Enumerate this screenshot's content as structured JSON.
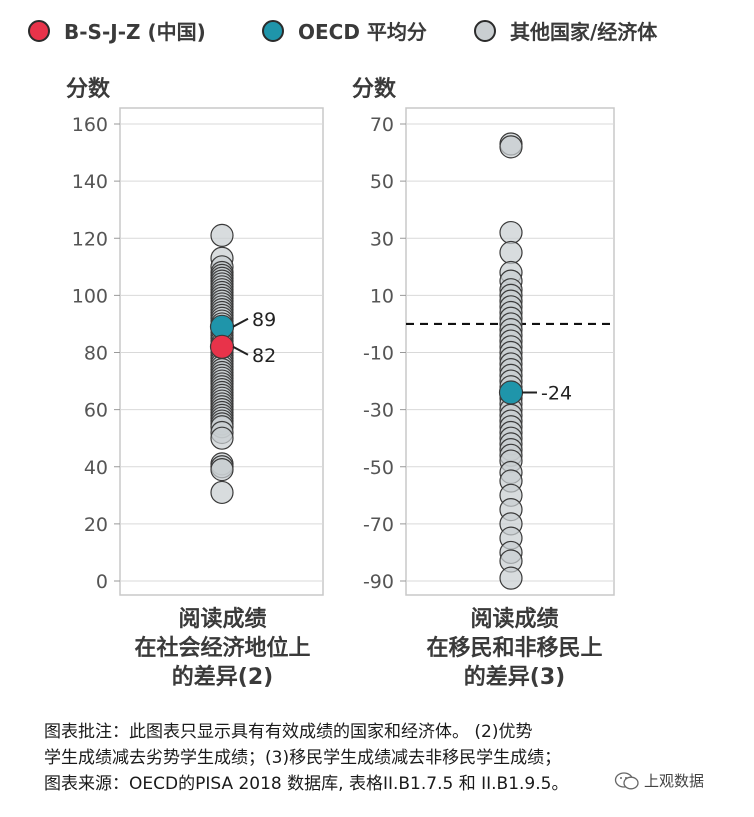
{
  "legend": {
    "items": [
      {
        "label": "B-S-J-Z (中国)",
        "color": "#e8334a",
        "icon": "red-dot-icon"
      },
      {
        "label": "OECD 平均分",
        "color": "#1f95aa",
        "icon": "teal-dot-icon"
      },
      {
        "label": "其他国家/经济体",
        "color": "#c9ced1",
        "icon": "grey-dot-icon"
      }
    ]
  },
  "colors": {
    "china": "#e8334a",
    "oecd": "#1f95aa",
    "others": "#c9ced1",
    "dot_stroke": "#3a3a3a",
    "grid": "#d9d9d9",
    "frame": "#c8c8c8"
  },
  "chart_data": [
    {
      "type": "scatter",
      "ylabel": "分数",
      "ylim": [
        0,
        160
      ],
      "yticks": [
        0,
        20,
        40,
        60,
        80,
        100,
        120,
        140,
        160
      ],
      "title_lines": [
        "阅读成绩",
        "在社会经济地位上",
        "的差异(2)"
      ],
      "grid": true,
      "reference_line": null,
      "others": [
        121,
        113,
        110,
        108,
        107,
        106,
        105,
        104,
        103,
        102,
        101,
        100,
        99,
        98,
        97,
        96,
        95,
        94,
        93,
        92,
        91,
        90,
        88,
        87,
        86,
        85,
        84,
        83,
        80,
        79,
        78,
        77,
        76,
        75,
        74,
        73,
        72,
        71,
        70,
        69,
        68,
        67,
        66,
        65,
        64,
        63,
        62,
        61,
        60,
        59,
        58,
        57,
        56,
        55,
        54,
        52,
        50,
        41,
        40,
        39,
        31
      ],
      "oecd": {
        "value": 89,
        "label": "89"
      },
      "china": {
        "value": 82,
        "label": "82"
      }
    },
    {
      "type": "scatter",
      "ylabel": "分数",
      "ylim": [
        -90,
        70
      ],
      "yticks": [
        -90,
        -70,
        -50,
        -30,
        -10,
        10,
        30,
        50,
        70
      ],
      "title_lines": [
        "阅读成绩",
        "在移民和非移民上",
        "的差异(3)"
      ],
      "grid": true,
      "reference_line": 0,
      "others": [
        63,
        62,
        32,
        25,
        18,
        15,
        12,
        10,
        8,
        6,
        4,
        2,
        0,
        -2,
        -4,
        -6,
        -8,
        -10,
        -12,
        -14,
        -16,
        -18,
        -20,
        -22,
        -26,
        -28,
        -30,
        -32,
        -34,
        -36,
        -38,
        -40,
        -42,
        -44,
        -46,
        -48,
        -52,
        -55,
        -60,
        -65,
        -70,
        -75,
        -80,
        -83,
        -89
      ],
      "oecd": {
        "value": -24,
        "label": "-24"
      },
      "china": null
    }
  ],
  "notes": {
    "line1": "图表批注：此图表只显示具有有效成绩的国家和经济体。 (2)优势",
    "line2": "学生成绩减去劣势学生成绩；(3)移民学生成绩减去非移民学生成绩；",
    "line3": "图表来源：OECD的PISA 2018 数据库, 表格II.B1.7.5 和 II.B1.9.5。"
  },
  "watermark": {
    "text": "上观数据",
    "icon": "wechat-icon"
  }
}
